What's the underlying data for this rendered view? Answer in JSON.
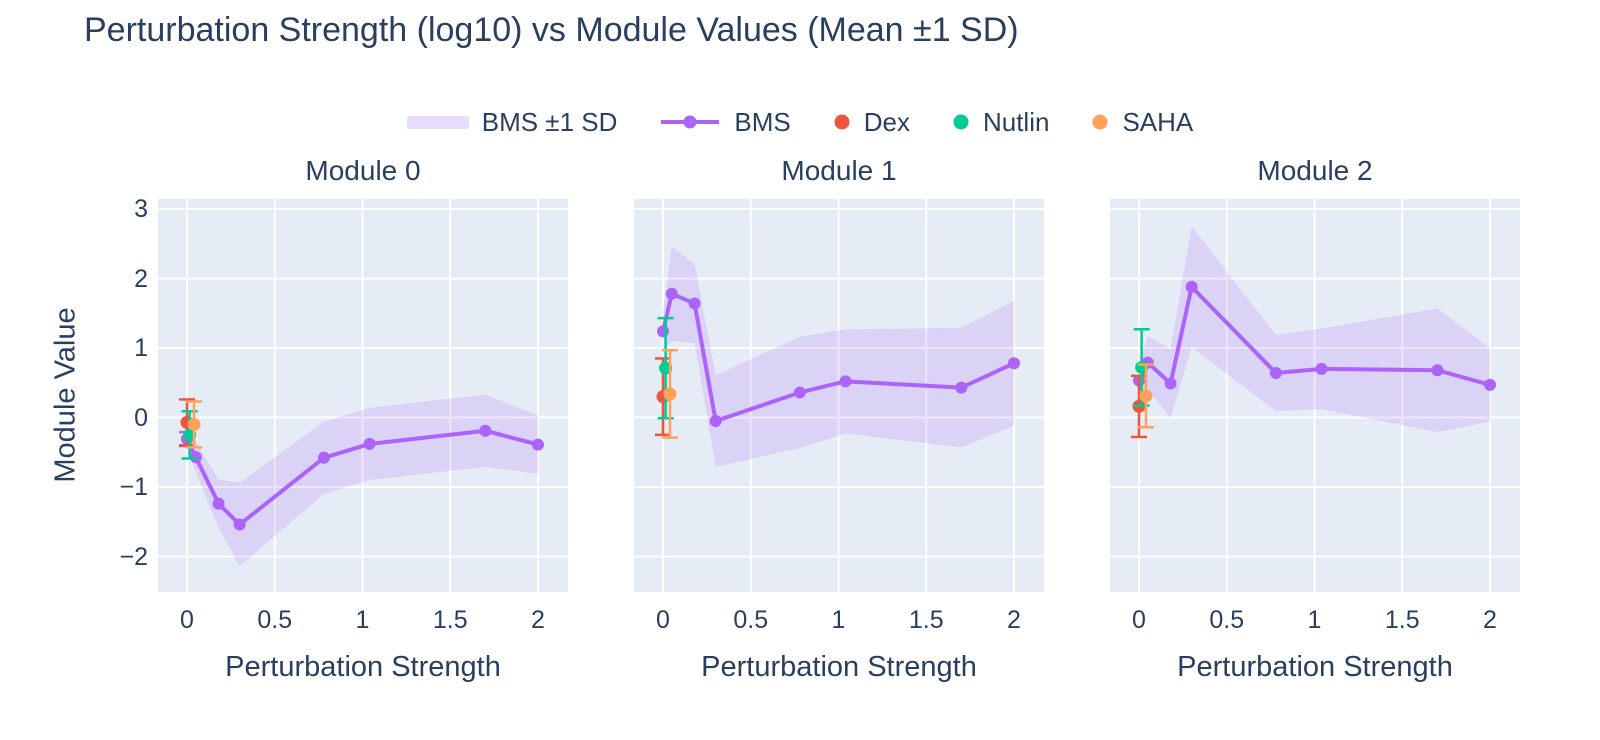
{
  "title": "Perturbation Strength (log10) vs Module Values (Mean ±1 SD)",
  "colors": {
    "bms": "#ab63fa",
    "band_fill": "#ab63fa",
    "band_opacity": 0.18,
    "band_legend_swatch": "#e9dcfc",
    "dex": "#ef553b",
    "nutlin": "#00cc96",
    "saha": "#ffa15a",
    "text": "#2a3f5f",
    "plot_background": "#e5ecf6",
    "grid": "#ffffff"
  },
  "legend": {
    "items": [
      {
        "label": "BMS ±1 SD",
        "swatch": "band",
        "color_key": "bms"
      },
      {
        "label": "BMS",
        "swatch": "line-marker",
        "color_key": "bms"
      },
      {
        "label": "Dex",
        "swatch": "dot",
        "color_key": "dex"
      },
      {
        "label": "Nutlin",
        "swatch": "dot",
        "color_key": "nutlin"
      },
      {
        "label": "SAHA",
        "swatch": "dot",
        "color_key": "saha"
      }
    ]
  },
  "axes": {
    "x_label": "Perturbation Strength",
    "y_label": "Module Value",
    "x_ticks": [
      "0",
      "0.5",
      "1",
      "1.5",
      "2"
    ],
    "x_tick_values": [
      0,
      0.5,
      1,
      1.5,
      2
    ],
    "y_ticks": [
      "3",
      "2",
      "1",
      "0",
      "−1",
      "−2"
    ],
    "y_tick_values": [
      3,
      2,
      1,
      0,
      -1,
      -2
    ],
    "x_range": [
      -0.17,
      2.17
    ],
    "y_range": [
      -2.51,
      3.14
    ],
    "grid": true
  },
  "chart_data": {
    "type": "line",
    "title": "Perturbation Strength (log10) vs Module Values (Mean ±1 SD)",
    "xlabel": "Perturbation Strength",
    "ylabel": "Module Value",
    "legend_entries": [
      "BMS ±1 SD",
      "BMS",
      "Dex",
      "Nutlin",
      "SAHA"
    ],
    "x": [
      0,
      0.05,
      0.18,
      0.3,
      0.78,
      1.04,
      1.7,
      2
    ],
    "subplots": [
      {
        "title": "Module 0",
        "bms_mean": [
          -0.31,
          -0.57,
          -1.24,
          -1.54,
          -0.58,
          -0.38,
          -0.19,
          -0.39
        ],
        "bms_sd": [
          0.12,
          0.22,
          0.35,
          0.6,
          0.52,
          0.52,
          0.52,
          0.42
        ],
        "bms_err0": 0.1,
        "treatments": [
          {
            "name": "Dex",
            "x": 0,
            "y": -0.07,
            "err": 0.33
          },
          {
            "name": "Nutlin",
            "x": 0.015,
            "y": -0.25,
            "err": 0.34
          },
          {
            "name": "SAHA",
            "x": 0.04,
            "y": -0.1,
            "err": 0.33
          }
        ]
      },
      {
        "title": "Module 1",
        "bms_mean": [
          1.24,
          1.78,
          1.64,
          -0.05,
          0.36,
          0.52,
          0.43,
          0.78
        ],
        "bms_sd": [
          0.28,
          0.68,
          0.57,
          0.66,
          0.8,
          0.75,
          0.86,
          0.9
        ],
        "bms_err0": null,
        "treatments": [
          {
            "name": "Dex",
            "x": 0,
            "y": 0.3,
            "err": 0.55
          },
          {
            "name": "Nutlin",
            "x": 0.015,
            "y": 0.71,
            "err": 0.72
          },
          {
            "name": "SAHA",
            "x": 0.04,
            "y": 0.34,
            "err": 0.63
          }
        ]
      },
      {
        "title": "Module 2",
        "bms_mean": [
          0.53,
          0.79,
          0.49,
          1.88,
          0.64,
          0.7,
          0.68,
          0.47
        ],
        "bms_sd": [
          0.25,
          0.38,
          0.5,
          0.87,
          0.55,
          0.58,
          0.89,
          0.53
        ],
        "bms_err0": null,
        "treatments": [
          {
            "name": "Dex",
            "x": 0,
            "y": 0.16,
            "err": 0.44
          },
          {
            "name": "Nutlin",
            "x": 0.015,
            "y": 0.72,
            "err": 0.55
          },
          {
            "name": "SAHA",
            "x": 0.04,
            "y": 0.31,
            "err": 0.45
          }
        ]
      }
    ]
  }
}
